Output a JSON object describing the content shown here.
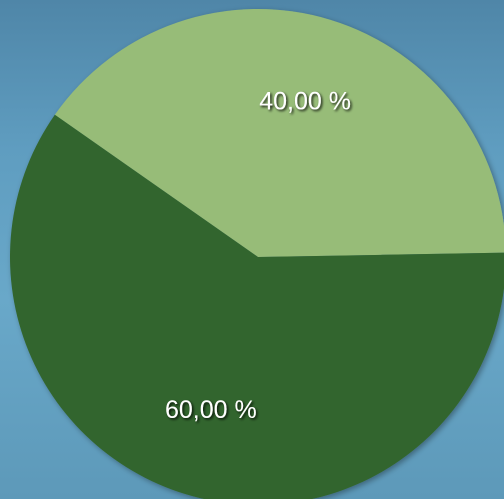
{
  "chart_data": {
    "type": "pie",
    "values": [
      40,
      60
    ],
    "value_labels": [
      "40,00 %",
      "60,00 %"
    ],
    "colors": [
      "#97bc78",
      "#33652d"
    ]
  }
}
